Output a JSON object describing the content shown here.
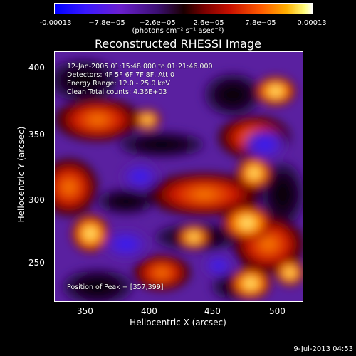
{
  "colorbar": {
    "ticks": [
      "-0.00013",
      "−7.8e−05",
      "−2.6e−05",
      "2.6e−05",
      "7.8e−05",
      "0.00013"
    ],
    "units": "(photons cm⁻² s⁻¹ asec⁻²)"
  },
  "plot": {
    "title": "Reconstructed RHESSI Image",
    "annotation": {
      "time_range": "12-Jan-2005 01:15:48.000 to 01:21:46.000",
      "detectors": "Detectors: 4F 5F 6F 7F 8F, Att 0",
      "energy": "Energy Range: 12.0 - 25.0 keV",
      "method": "Clean     Total counts: 4.36E+03"
    },
    "peak_label": "Position of Peak = [357,399]",
    "x_ticks": [
      "350",
      "400",
      "450",
      "500"
    ],
    "y_ticks": [
      "400",
      "350",
      "300",
      "250"
    ],
    "xlabel": "Heliocentric X (arcsec)",
    "ylabel": "Heliocentric Y (arcsec)"
  },
  "footer": {
    "timestamp": "9-Jul-2013 04:53"
  }
}
